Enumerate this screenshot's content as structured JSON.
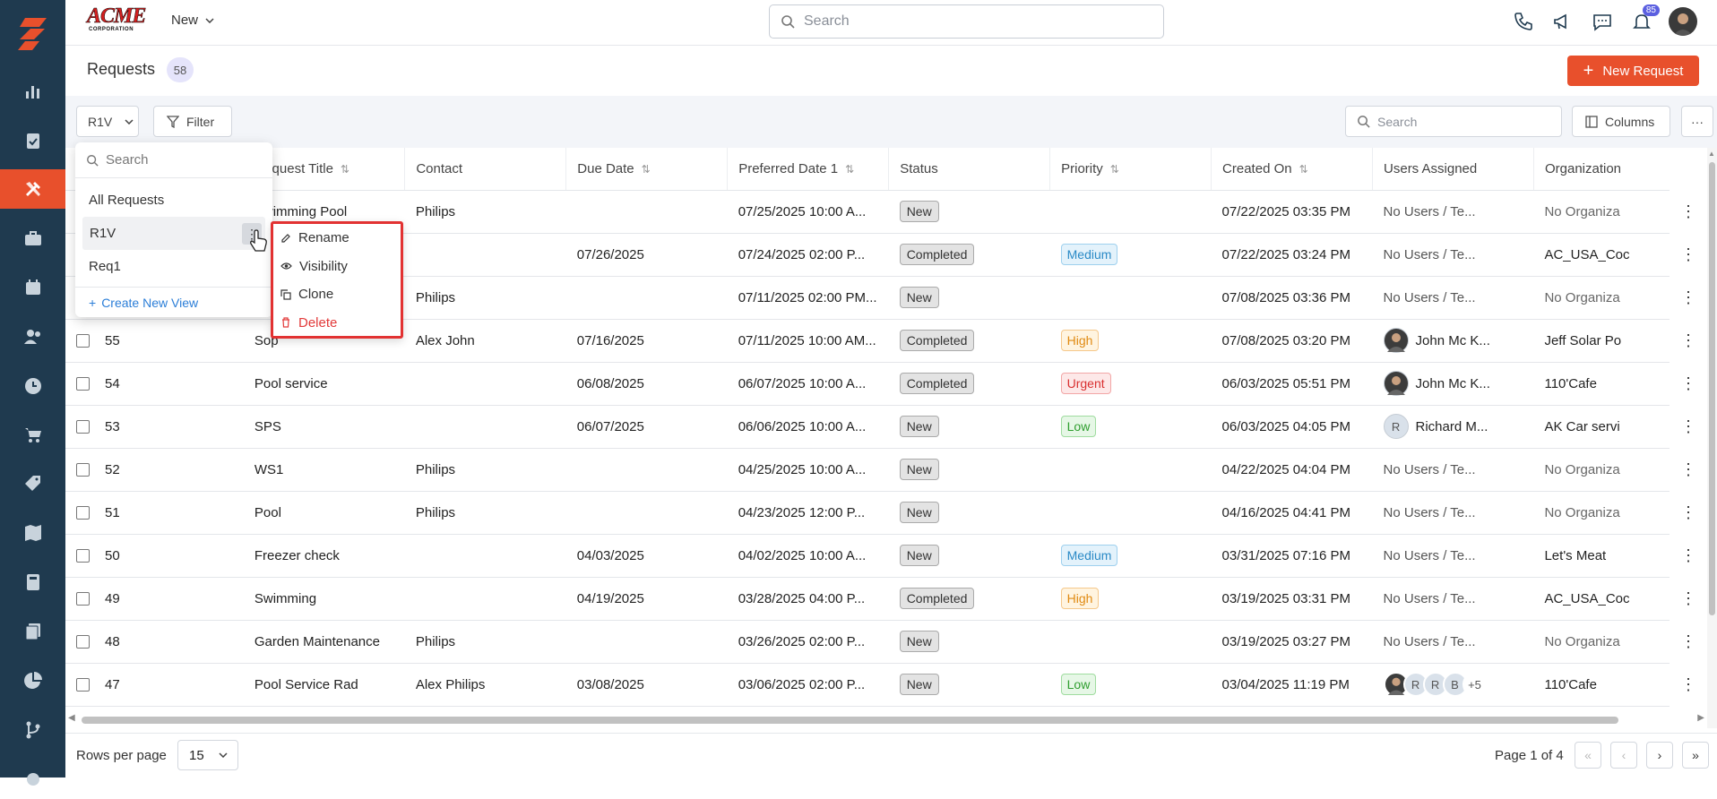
{
  "topbar": {
    "brand": "ACME",
    "brand_sub": "CORPORATION",
    "new_label": "New",
    "search_placeholder": "Search",
    "notification_count": "85"
  },
  "header": {
    "title": "Requests",
    "count": "58",
    "new_request_label": "New Request"
  },
  "toolbar": {
    "view_label": "R1V",
    "filter_label": "Filter",
    "search_placeholder": "Search",
    "columns_label": "Columns",
    "more_label": "···"
  },
  "view_dropdown": {
    "search_placeholder": "Search",
    "items": [
      "All Requests",
      "R1V",
      "Req1"
    ],
    "create_label": "Create New View"
  },
  "context_menu": {
    "rename": "Rename",
    "visibility": "Visibility",
    "clone": "Clone",
    "delete": "Delete"
  },
  "columns": [
    "Request Title",
    "Contact",
    "Due Date",
    "Preferred Date 1",
    "Status",
    "Priority",
    "Created On",
    "Users Assigned",
    "Organization"
  ],
  "rows": [
    {
      "id": "",
      "title": "Swimming Pool",
      "contact": "Philips",
      "due": "",
      "pref": "07/25/2025 10:00 A...",
      "status": "New",
      "priority": "",
      "created": "07/22/2025 03:35 PM",
      "users": "No Users / Te...",
      "org": "No Organiza"
    },
    {
      "id": "",
      "title": "",
      "contact": "",
      "due": "07/26/2025",
      "pref": "07/24/2025 02:00 P...",
      "status": "Completed",
      "priority": "Medium",
      "created": "07/22/2025 03:24 PM",
      "users": "No Users / Te...",
      "org": "AC_USA_Coc"
    },
    {
      "id": "",
      "title": "",
      "contact": "Philips",
      "due": "",
      "pref": "07/11/2025 02:00 PM...",
      "status": "New",
      "priority": "",
      "created": "07/08/2025 03:36 PM",
      "users": "No Users / Te...",
      "org": "No Organiza"
    },
    {
      "id": "55",
      "title": "Sop",
      "contact": "Alex John",
      "due": "07/16/2025",
      "pref": "07/11/2025 10:00 AM...",
      "status": "Completed",
      "priority": "High",
      "created": "07/08/2025 03:20 PM",
      "users": "John Mc K...",
      "org": "Jeff Solar Po"
    },
    {
      "id": "54",
      "title": "Pool service",
      "contact": "",
      "due": "06/08/2025",
      "pref": "06/07/2025 10:00 A...",
      "status": "Completed",
      "priority": "Urgent",
      "created": "06/03/2025 05:51 PM",
      "users": "John Mc K...",
      "org": "110'Cafe"
    },
    {
      "id": "53",
      "title": "SPS",
      "contact": "",
      "due": "06/07/2025",
      "pref": "06/06/2025 10:00 A...",
      "status": "New",
      "priority": "Low",
      "created": "06/03/2025 04:05 PM",
      "users": "Richard M...",
      "org": "AK Car servi"
    },
    {
      "id": "52",
      "title": "WS1",
      "contact": "Philips",
      "due": "",
      "pref": "04/25/2025 10:00 A...",
      "status": "New",
      "priority": "",
      "created": "04/22/2025 04:04 PM",
      "users": "No Users / Te...",
      "org": "No Organiza"
    },
    {
      "id": "51",
      "title": "Pool",
      "contact": "Philips",
      "due": "",
      "pref": "04/23/2025 12:00 P...",
      "status": "New",
      "priority": "",
      "created": "04/16/2025 04:41 PM",
      "users": "No Users / Te...",
      "org": "No Organiza"
    },
    {
      "id": "50",
      "title": "Freezer check",
      "contact": "",
      "due": "04/03/2025",
      "pref": "04/02/2025 10:00 A...",
      "status": "New",
      "priority": "Medium",
      "created": "03/31/2025 07:16 PM",
      "users": "No Users / Te...",
      "org": "Let's Meat"
    },
    {
      "id": "49",
      "title": "Swimming",
      "contact": "",
      "due": "04/19/2025",
      "pref": "03/28/2025 04:00 P...",
      "status": "Completed",
      "priority": "High",
      "created": "03/19/2025 03:31 PM",
      "users": "No Users / Te...",
      "org": "AC_USA_Coc"
    },
    {
      "id": "48",
      "title": "Garden Maintenance",
      "contact": "Philips",
      "due": "",
      "pref": "03/26/2025 02:00 P...",
      "status": "New",
      "priority": "",
      "created": "03/19/2025 03:27 PM",
      "users": "No Users / Te...",
      "org": "No Organiza"
    },
    {
      "id": "47",
      "title": "Pool Service Rad",
      "contact": "Alex Philips",
      "due": "03/08/2025",
      "pref": "03/06/2025 02:00 P...",
      "status": "New",
      "priority": "Low",
      "created": "03/04/2025 11:19 PM",
      "users": "",
      "org": "110'Cafe"
    }
  ],
  "avatars": {
    "richard_initial": "R",
    "stack": [
      "R",
      "R",
      "B"
    ],
    "stack_more": "+5"
  },
  "footer": {
    "rows_per_page_label": "Rows per page",
    "rows_per_page_value": "15",
    "page_info": "Page 1 of 4"
  },
  "colors": {
    "sidebar": "#1f3a4f",
    "accent": "#e8502c",
    "highlight_border": "#e23232"
  }
}
